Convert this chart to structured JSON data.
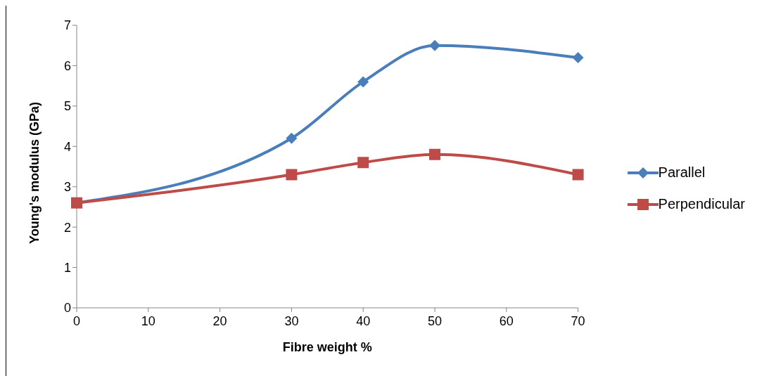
{
  "chart_data": {
    "type": "line",
    "xlabel": "Fibre weight %",
    "ylabel": "Young's modulus (GPa)",
    "x": [
      0,
      30,
      40,
      50,
      70
    ],
    "series": [
      {
        "name": "Parallel",
        "color": "#4a7ebb",
        "marker": "diamond",
        "values": [
          2.6,
          4.2,
          5.6,
          6.5,
          6.2
        ]
      },
      {
        "name": "Perpendicular",
        "color": "#be4b48",
        "marker": "square",
        "values": [
          2.6,
          3.3,
          3.6,
          3.8,
          3.3
        ]
      }
    ],
    "xlim": [
      0,
      70
    ],
    "xticks": [
      0,
      10,
      20,
      30,
      40,
      50,
      60,
      70
    ],
    "ylim": [
      0,
      7
    ],
    "yticks": [
      0,
      1,
      2,
      3,
      4,
      5,
      6,
      7
    ],
    "grid": false,
    "legend": "right",
    "line_style": "solid"
  }
}
